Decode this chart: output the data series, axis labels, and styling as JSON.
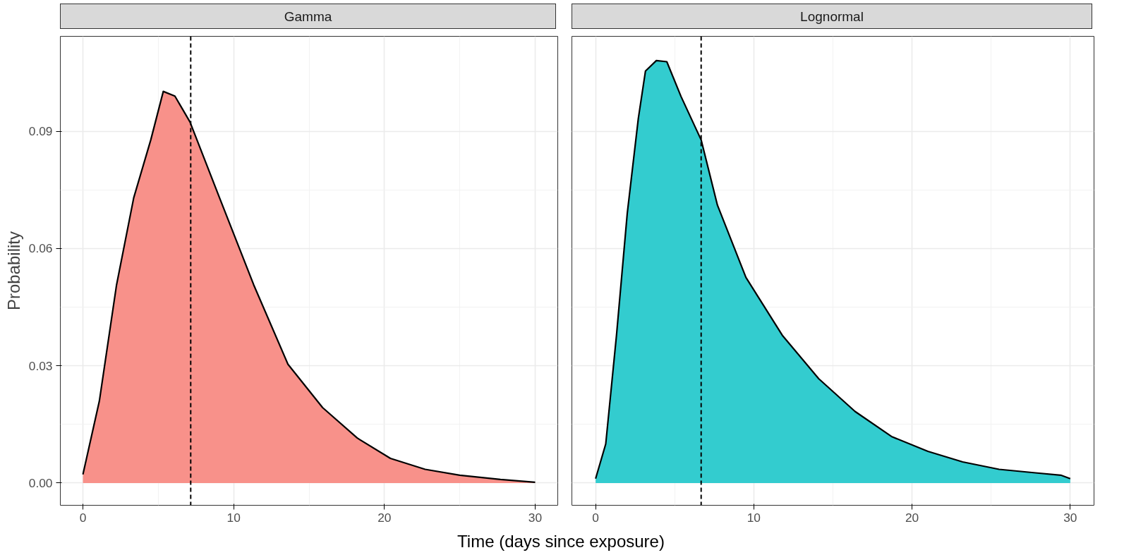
{
  "chart_data": [
    {
      "type": "area",
      "title": "Gamma",
      "ylabel": "Probability",
      "xlabel": "Time (days since exposure)",
      "x": [
        0,
        1.09,
        2.23,
        3.37,
        4.5,
        5.33,
        6.1,
        7.1,
        9.06,
        11.33,
        13.6,
        15.9,
        18.2,
        20.4,
        22.7,
        25,
        27.7,
        30
      ],
      "series": [
        {
          "color": "#f8918a",
          "values": [
            0.0022,
            0.021,
            0.0507,
            0.073,
            0.0878,
            0.1002,
            0.099,
            0.0924,
            0.073,
            0.0507,
            0.0304,
            0.0193,
            0.0115,
            0.0063,
            0.0035,
            0.002,
            0.0009,
            0.0002
          ]
        }
      ],
      "xlim": [
        -1.5,
        31.5
      ],
      "ylim": [
        -0.0057,
        0.1143
      ],
      "xticks": [
        0,
        10,
        20,
        30
      ],
      "yticks": [
        {
          "value": 0,
          "label": "0.00"
        },
        {
          "value": 0.03,
          "label": "0.03"
        },
        {
          "value": 0.06,
          "label": "0.06"
        },
        {
          "value": 0.09,
          "label": "0.09"
        }
      ],
      "ref_lines": [
        {
          "axis": "x",
          "value": 7.15,
          "line_style": "dashed",
          "color": "#000000"
        }
      ],
      "grid": true
    },
    {
      "type": "area",
      "title": "Lognormal",
      "x": [
        0,
        0.64,
        1.32,
        2,
        2.7,
        3.15,
        3.84,
        4.5,
        5.4,
        6.67,
        7.7,
        9.5,
        11.8,
        14.1,
        16.4,
        18.7,
        21,
        23.2,
        25.5,
        27.8,
        29.4,
        30
      ],
      "series": [
        {
          "color": "#33cccf",
          "values": [
            0.0011,
            0.01,
            0.0378,
            0.069,
            0.0933,
            0.1054,
            0.1081,
            0.1078,
            0.0989,
            0.0878,
            0.0711,
            0.0526,
            0.0378,
            0.0267,
            0.0183,
            0.0119,
            0.0081,
            0.0054,
            0.0035,
            0.0026,
            0.002,
            0.0011
          ]
        }
      ],
      "xlim": [
        -1.5,
        31.5
      ],
      "ylim": [
        -0.0057,
        0.1143
      ],
      "xticks": [
        0,
        10,
        20,
        30
      ],
      "yticks": [
        0,
        0.03,
        0.06,
        0.09
      ],
      "ref_lines": [
        {
          "axis": "x",
          "value": 6.67,
          "line_style": "dashed",
          "color": "#000000"
        }
      ],
      "grid": true,
      "tick_labels": "x"
    }
  ]
}
